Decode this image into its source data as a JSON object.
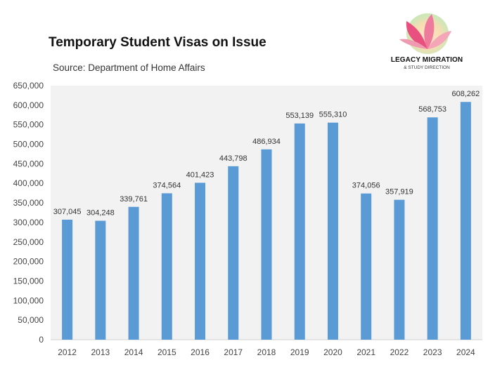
{
  "header": {
    "title": "Temporary Student Visas on Issue",
    "subtitle": "Source: Department of Home Affairs"
  },
  "logo": {
    "name": "LEGACY MIGRATION",
    "tagline": "& STUDY DIRECTION",
    "colors": [
      "#e8517f",
      "#f4a6b8",
      "#f7d9a8",
      "#b9dca3"
    ]
  },
  "chart_data": {
    "type": "bar",
    "categories": [
      "2012",
      "2013",
      "2014",
      "2015",
      "2016",
      "2017",
      "2018",
      "2019",
      "2020",
      "2021",
      "2022",
      "2023",
      "2024"
    ],
    "values": [
      307045,
      304248,
      339761,
      374564,
      401423,
      443798,
      486934,
      553139,
      555310,
      374056,
      357919,
      568753,
      608262
    ],
    "data_labels": [
      "307,045",
      "304,248",
      "339,761",
      "374,564",
      "401,423",
      "443,798",
      "486,934",
      "553,139",
      "555,310",
      "374,056",
      "357,919",
      "568,753",
      "608,262"
    ],
    "title": "Temporary Student Visas on Issue",
    "subtitle": "Source: Department of Home Affairs",
    "xlabel": "",
    "ylabel": "",
    "ylim": [
      0,
      650000
    ],
    "yticks": [
      0,
      50000,
      100000,
      150000,
      200000,
      250000,
      300000,
      350000,
      400000,
      450000,
      500000,
      550000,
      600000,
      650000
    ],
    "ytick_labels": [
      "0",
      "50,000",
      "100,000",
      "150,000",
      "200,000",
      "250,000",
      "300,000",
      "350,000",
      "400,000",
      "450,000",
      "500,000",
      "550,000",
      "600,000",
      "650,000"
    ],
    "grid": false,
    "bar_color": "#5b9bd5",
    "plot_background": "#f2f2f2"
  }
}
